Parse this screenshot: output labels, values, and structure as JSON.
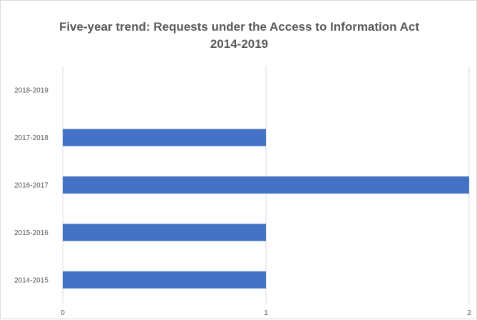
{
  "chart_data": {
    "type": "bar",
    "orientation": "horizontal",
    "title": "Five-year trend: Requests under the Access to Information Act",
    "subtitle": "2014-2019",
    "categories": [
      "2014-2015",
      "2015-2016",
      "2016-2017",
      "2017-2018",
      "2018-2019"
    ],
    "values": [
      1,
      1,
      2,
      1,
      0
    ],
    "x_ticks": [
      "0",
      "1",
      "2"
    ],
    "xlim": [
      0,
      2
    ],
    "grid": "vertical",
    "legend": "none",
    "colors": {
      "bar": "#4472c4",
      "grid": "#d9d9d9",
      "text": "#595959"
    }
  }
}
